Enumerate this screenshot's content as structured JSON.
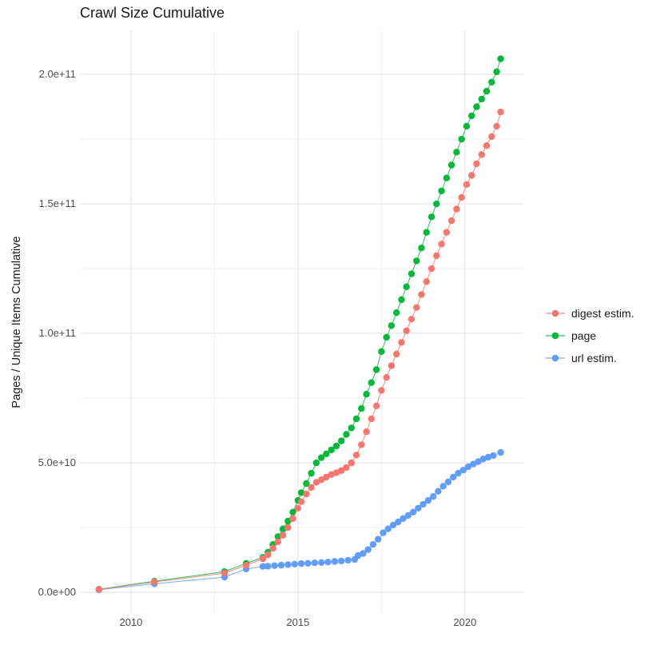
{
  "chart_data": {
    "type": "scatter-line",
    "title": "Crawl Size Cumulative",
    "xlabel": "",
    "ylabel": "Pages / Unique Items Cumulative",
    "grid": true,
    "legend_position": "right",
    "xlim": [
      2008.47,
      2021.75
    ],
    "ylim": [
      -8300000000.0,
      217000000000.0
    ],
    "x_ticks": [
      {
        "value": 2010,
        "label": "2010"
      },
      {
        "value": 2015,
        "label": "2015"
      },
      {
        "value": 2020,
        "label": "2020"
      }
    ],
    "x_minor": [
      2012.5,
      2017.5
    ],
    "y_ticks": [
      {
        "value": 0.0,
        "label": "0.0e+00"
      },
      {
        "value": 50000000000.0,
        "label": "5.0e+10"
      },
      {
        "value": 100000000000.0,
        "label": "1.0e+11"
      },
      {
        "value": 150000000000.0,
        "label": "1.5e+11"
      },
      {
        "value": 200000000000.0,
        "label": "2.0e+11"
      }
    ],
    "y_minor": [
      25000000000.0,
      75000000000.0,
      125000000000.0,
      175000000000.0
    ],
    "colors": {
      "grid_major": "#e3e3e3",
      "grid_minor": "#f0f0f0",
      "tick_label": "#4d4d4d",
      "title": "#1a1a1a"
    },
    "series": [
      {
        "name": "digest estim.",
        "color": "#F8766D",
        "z": 3,
        "points": [
          [
            2009.04,
            1150000000.0
          ],
          [
            2010.7,
            4000000000.0
          ],
          [
            2012.8,
            7400000000.0
          ],
          [
            2013.45,
            10500000000.0
          ],
          [
            2013.95,
            13000000000.0
          ],
          [
            2014.1,
            14500000000.0
          ],
          [
            2014.25,
            17000000000.0
          ],
          [
            2014.4,
            19500000000.0
          ],
          [
            2014.55,
            22000000000.0
          ],
          [
            2014.7,
            25000000000.0
          ],
          [
            2014.85,
            28500000000.0
          ],
          [
            2015.0,
            32500000000.0
          ],
          [
            2015.1,
            35000000000.0
          ],
          [
            2015.25,
            38000000000.0
          ],
          [
            2015.4,
            40500000000.0
          ],
          [
            2015.55,
            42500000000.0
          ],
          [
            2015.7,
            43500000000.0
          ],
          [
            2015.85,
            44500000000.0
          ],
          [
            2016.0,
            45500000000.0
          ],
          [
            2016.15,
            46200000000.0
          ],
          [
            2016.3,
            47000000000.0
          ],
          [
            2016.45,
            48200000000.0
          ],
          [
            2016.6,
            50000000000.0
          ],
          [
            2016.75,
            53000000000.0
          ],
          [
            2016.9,
            57000000000.0
          ],
          [
            2017.05,
            62000000000.0
          ],
          [
            2017.2,
            67000000000.0
          ],
          [
            2017.35,
            72000000000.0
          ],
          [
            2017.5,
            78000000000.0
          ],
          [
            2017.65,
            83000000000.0
          ],
          [
            2017.8,
            87500000000.0
          ],
          [
            2017.95,
            92000000000.0
          ],
          [
            2018.1,
            96500000000.0
          ],
          [
            2018.25,
            101000000000.0
          ],
          [
            2018.4,
            105500000000.0
          ],
          [
            2018.55,
            110000000000.0
          ],
          [
            2018.7,
            115000000000.0
          ],
          [
            2018.85,
            120000000000.0
          ],
          [
            2019.0,
            125000000000.0
          ],
          [
            2019.15,
            130000000000.0
          ],
          [
            2019.3,
            134500000000.0
          ],
          [
            2019.45,
            139000000000.0
          ],
          [
            2019.6,
            143500000000.0
          ],
          [
            2019.75,
            148000000000.0
          ],
          [
            2019.9,
            152500000000.0
          ],
          [
            2020.05,
            157500000000.0
          ],
          [
            2020.2,
            161000000000.0
          ],
          [
            2020.35,
            165500000000.0
          ],
          [
            2020.5,
            169000000000.0
          ],
          [
            2020.65,
            172500000000.0
          ],
          [
            2020.8,
            176000000000.0
          ],
          [
            2020.95,
            180000000000.0
          ],
          [
            2021.07,
            185500000000.0
          ]
        ]
      },
      {
        "name": "page",
        "color": "#00BA38",
        "z": 1,
        "points": [
          [
            2009.04,
            1200000000.0
          ],
          [
            2010.7,
            4300000000.0
          ],
          [
            2012.8,
            8000000000.0
          ],
          [
            2013.45,
            11200000000.0
          ],
          [
            2013.95,
            13500000000.0
          ],
          [
            2014.1,
            15500000000.0
          ],
          [
            2014.25,
            18500000000.0
          ],
          [
            2014.4,
            21500000000.0
          ],
          [
            2014.55,
            24500000000.0
          ],
          [
            2014.7,
            27500000000.0
          ],
          [
            2014.85,
            31000000000.0
          ],
          [
            2015.0,
            35500000000.0
          ],
          [
            2015.1,
            38500000000.0
          ],
          [
            2015.25,
            42000000000.0
          ],
          [
            2015.4,
            46000000000.0
          ],
          [
            2015.55,
            50000000000.0
          ],
          [
            2015.7,
            52000000000.0
          ],
          [
            2015.85,
            53500000000.0
          ],
          [
            2016.0,
            55000000000.0
          ],
          [
            2016.15,
            56500000000.0
          ],
          [
            2016.3,
            58500000000.0
          ],
          [
            2016.45,
            61000000000.0
          ],
          [
            2016.6,
            63500000000.0
          ],
          [
            2016.75,
            67000000000.0
          ],
          [
            2016.9,
            71000000000.0
          ],
          [
            2017.05,
            76500000000.0
          ],
          [
            2017.2,
            81000000000.0
          ],
          [
            2017.35,
            86000000000.0
          ],
          [
            2017.5,
            93000000000.0
          ],
          [
            2017.65,
            98500000000.0
          ],
          [
            2017.8,
            103000000000.0
          ],
          [
            2017.95,
            108000000000.0
          ],
          [
            2018.1,
            113000000000.0
          ],
          [
            2018.25,
            118000000000.0
          ],
          [
            2018.4,
            123000000000.0
          ],
          [
            2018.55,
            128000000000.0
          ],
          [
            2018.7,
            133000000000.0
          ],
          [
            2018.85,
            139000000000.0
          ],
          [
            2019.0,
            145000000000.0
          ],
          [
            2019.15,
            150000000000.0
          ],
          [
            2019.3,
            155000000000.0
          ],
          [
            2019.45,
            160000000000.0
          ],
          [
            2019.6,
            165000000000.0
          ],
          [
            2019.75,
            170000000000.0
          ],
          [
            2019.9,
            175000000000.0
          ],
          [
            2020.05,
            180000000000.0
          ],
          [
            2020.2,
            184000000000.0
          ],
          [
            2020.35,
            187500000000.0
          ],
          [
            2020.5,
            190500000000.0
          ],
          [
            2020.65,
            193500000000.0
          ],
          [
            2020.8,
            197000000000.0
          ],
          [
            2020.95,
            201000000000.0
          ],
          [
            2021.07,
            206000000000.0
          ]
        ]
      },
      {
        "name": "url estim.",
        "color": "#619CFF",
        "z": 2,
        "points": [
          [
            2009.04,
            1000000000.0
          ],
          [
            2010.7,
            3300000000.0
          ],
          [
            2012.8,
            5900000000.0
          ],
          [
            2013.45,
            9000000000.0
          ],
          [
            2013.95,
            10000000000.0
          ],
          [
            2014.1,
            10100000000.0
          ],
          [
            2014.3,
            10300000000.0
          ],
          [
            2014.5,
            10500000000.0
          ],
          [
            2014.7,
            10700000000.0
          ],
          [
            2014.9,
            10900000000.0
          ],
          [
            2015.1,
            11100000000.0
          ],
          [
            2015.3,
            11200000000.0
          ],
          [
            2015.5,
            11400000000.0
          ],
          [
            2015.7,
            11500000000.0
          ],
          [
            2015.9,
            11700000000.0
          ],
          [
            2016.1,
            11900000000.0
          ],
          [
            2016.3,
            12100000000.0
          ],
          [
            2016.5,
            12400000000.0
          ],
          [
            2016.7,
            12700000000.0
          ],
          [
            2016.8,
            14200000000.0
          ],
          [
            2016.95,
            15000000000.0
          ],
          [
            2017.1,
            16500000000.0
          ],
          [
            2017.25,
            18500000000.0
          ],
          [
            2017.4,
            20500000000.0
          ],
          [
            2017.55,
            23000000000.0
          ],
          [
            2017.7,
            24500000000.0
          ],
          [
            2017.85,
            26000000000.0
          ],
          [
            2018.0,
            27200000000.0
          ],
          [
            2018.15,
            28500000000.0
          ],
          [
            2018.3,
            29700000000.0
          ],
          [
            2018.45,
            31000000000.0
          ],
          [
            2018.6,
            32500000000.0
          ],
          [
            2018.75,
            34000000000.0
          ],
          [
            2018.9,
            35500000000.0
          ],
          [
            2019.05,
            37000000000.0
          ],
          [
            2019.2,
            39000000000.0
          ],
          [
            2019.35,
            41000000000.0
          ],
          [
            2019.5,
            42700000000.0
          ],
          [
            2019.65,
            44500000000.0
          ],
          [
            2019.8,
            46000000000.0
          ],
          [
            2019.95,
            47200000000.0
          ],
          [
            2020.1,
            48500000000.0
          ],
          [
            2020.25,
            49500000000.0
          ],
          [
            2020.4,
            50500000000.0
          ],
          [
            2020.55,
            51500000000.0
          ],
          [
            2020.7,
            52200000000.0
          ],
          [
            2020.85,
            52800000000.0
          ],
          [
            2021.07,
            54000000000.0
          ]
        ]
      }
    ]
  }
}
